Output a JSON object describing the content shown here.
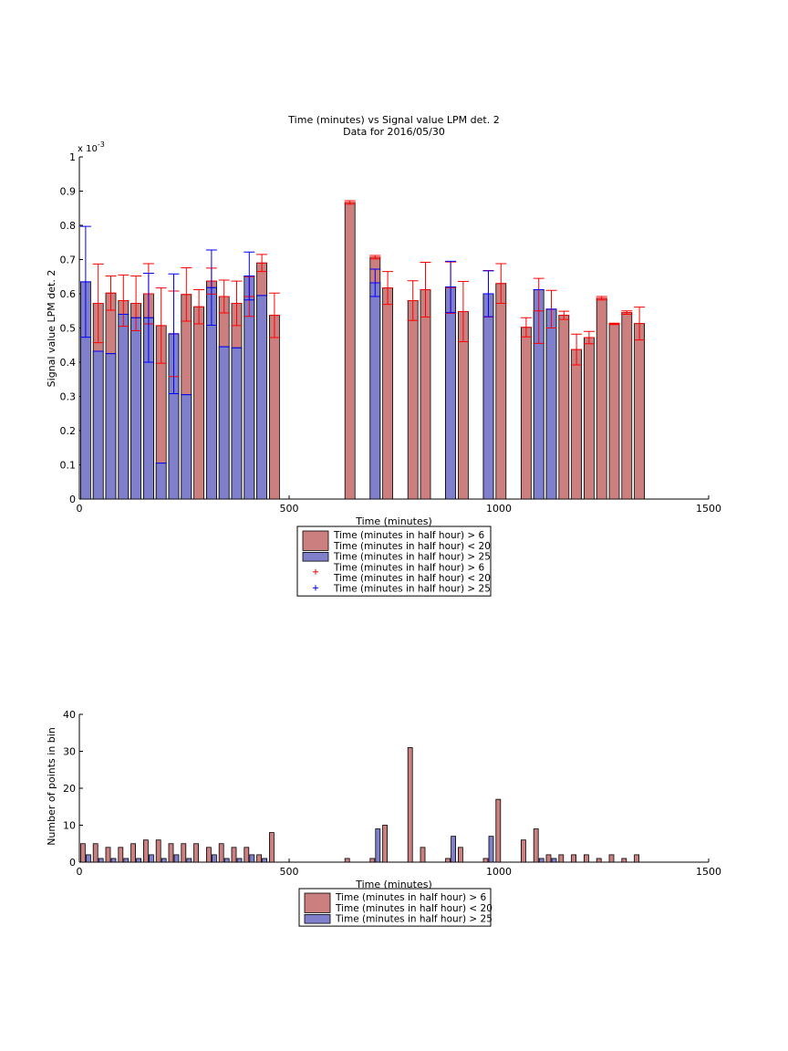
{
  "colors": {
    "red_bar_fill": "#cc7f7f",
    "blue_bar_fill": "#7f7fcc",
    "red_marker": "#ff0000",
    "blue_marker": "#0000ff",
    "axes": "#000000"
  },
  "chart_data": [
    {
      "type": "bar",
      "title": "Time (minutes) vs Signal value LPM det. 2",
      "subtitle": "Data for 2016/05/30",
      "xlabel": "Time (minutes)",
      "ylabel": "Signal value LPM det. 2",
      "exponent_label": "x 10",
      "exponent_power": "-3",
      "xlim": [
        0,
        1500
      ],
      "ylim": [
        0,
        1
      ],
      "xticks": [
        "0",
        "500",
        "1000",
        "1500"
      ],
      "yticks": [
        "0",
        "0.1",
        "0.2",
        "0.3",
        "0.4",
        "0.5",
        "0.6",
        "0.7",
        "0.8",
        "0.9",
        "1"
      ],
      "grid": false,
      "legend_position": "below",
      "legend": [
        {
          "kind": "bar",
          "series": "red",
          "lines": [
            "Time (minutes in half hour) > 6",
            "Time (minutes in half hour) < 20"
          ]
        },
        {
          "kind": "bar",
          "series": "blue",
          "lines": [
            "Time (minutes in half hour) > 25"
          ]
        },
        {
          "kind": "errorbar",
          "series": "red",
          "lines": [
            "Time (minutes in half hour) > 6",
            "Time (minutes in half hour) < 20"
          ]
        },
        {
          "kind": "errorbar",
          "series": "blue",
          "lines": [
            "Time (minutes in half hour) > 25"
          ]
        }
      ],
      "series": [
        {
          "color_key": "red",
          "x": [
            45,
            75,
            105,
            135,
            165,
            195,
            225,
            255,
            285,
            315,
            345,
            375,
            405,
            435,
            465,
            645,
            705,
            735,
            795,
            825,
            885,
            915,
            975,
            1005,
            1065,
            1095,
            1125,
            1155,
            1185,
            1215,
            1245,
            1275,
            1305,
            1335
          ],
          "values": [
            0.572,
            0.602,
            0.58,
            0.572,
            0.6,
            0.507,
            0.483,
            0.598,
            0.562,
            0.637,
            0.592,
            0.572,
            0.592,
            0.69,
            0.537,
            0.867,
            0.707,
            0.617,
            0.58,
            0.612,
            0.618,
            0.548,
            0.6,
            0.63,
            0.502,
            0.55,
            0.555,
            0.537,
            0.437,
            0.472,
            0.587,
            0.512,
            0.545,
            0.513
          ],
          "errors": [
            0.115,
            0.05,
            0.075,
            0.08,
            0.088,
            0.11,
            0.125,
            0.078,
            0.05,
            0.038,
            0.048,
            0.065,
            0.058,
            0.025,
            0.065,
            0.005,
            0.005,
            0.048,
            0.058,
            0.08,
            0.075,
            0.088,
            0.068,
            0.058,
            0.028,
            0.095,
            0.055,
            0.012,
            0.045,
            0.018,
            0.005,
            0.002,
            0.005,
            0.048
          ]
        },
        {
          "color_key": "blue",
          "x": [
            15,
            45,
            75,
            105,
            135,
            165,
            195,
            225,
            255,
            315,
            345,
            375,
            405,
            435,
            705,
            885,
            975,
            1095,
            1125
          ],
          "values": [
            0.635,
            0.432,
            0.425,
            0.54,
            0.53,
            0.53,
            0.105,
            0.483,
            0.305,
            0.618,
            0.445,
            0.442,
            0.652,
            0.595,
            0.632,
            0.62,
            0.6,
            0.612,
            0.555
          ],
          "errors": [
            0.162,
            0.0,
            0.0,
            0.0,
            0.0,
            0.13,
            0.0,
            0.175,
            0.0,
            0.11,
            0.0,
            0.0,
            0.07,
            0.0,
            0.04,
            0.075,
            0.067,
            0.0,
            0.0
          ]
        }
      ]
    },
    {
      "type": "bar",
      "title": "",
      "xlabel": "Time (minutes)",
      "ylabel": "Number of points in bin",
      "xlim": [
        0,
        1500
      ],
      "ylim": [
        0,
        40
      ],
      "xticks": [
        "0",
        "500",
        "1000",
        "1500"
      ],
      "yticks": [
        "0",
        "10",
        "20",
        "30",
        "40"
      ],
      "grid": false,
      "legend_position": "below",
      "legend": [
        {
          "kind": "bar",
          "series": "red",
          "lines": [
            "Time (minutes in half hour) > 6",
            "Time (minutes in half hour) < 20"
          ]
        },
        {
          "kind": "bar",
          "series": "blue",
          "lines": [
            "Time (minutes in half hour) > 25"
          ]
        }
      ],
      "series": [
        {
          "color_key": "red",
          "x": [
            15,
            45,
            75,
            105,
            135,
            165,
            195,
            225,
            255,
            285,
            315,
            345,
            375,
            405,
            435,
            465,
            645,
            705,
            735,
            795,
            825,
            885,
            915,
            975,
            1005,
            1065,
            1095,
            1125,
            1155,
            1185,
            1215,
            1245,
            1275,
            1305,
            1335
          ],
          "values": [
            5,
            5,
            4,
            4,
            5,
            6,
            6,
            5,
            5,
            5,
            4,
            5,
            4,
            4,
            2,
            8,
            1,
            1,
            10,
            31,
            4,
            1,
            4,
            1,
            17,
            6,
            9,
            2,
            2,
            2,
            2,
            1,
            2,
            1,
            2
          ]
        },
        {
          "color_key": "blue",
          "x": [
            15,
            45,
            75,
            105,
            135,
            165,
            195,
            225,
            255,
            315,
            345,
            375,
            405,
            435,
            705,
            885,
            975,
            1095,
            1125
          ],
          "values": [
            2,
            1,
            1,
            1,
            1,
            2,
            1,
            2,
            1,
            2,
            1,
            1,
            2,
            1,
            9,
            7,
            7,
            1,
            1
          ]
        }
      ]
    }
  ]
}
